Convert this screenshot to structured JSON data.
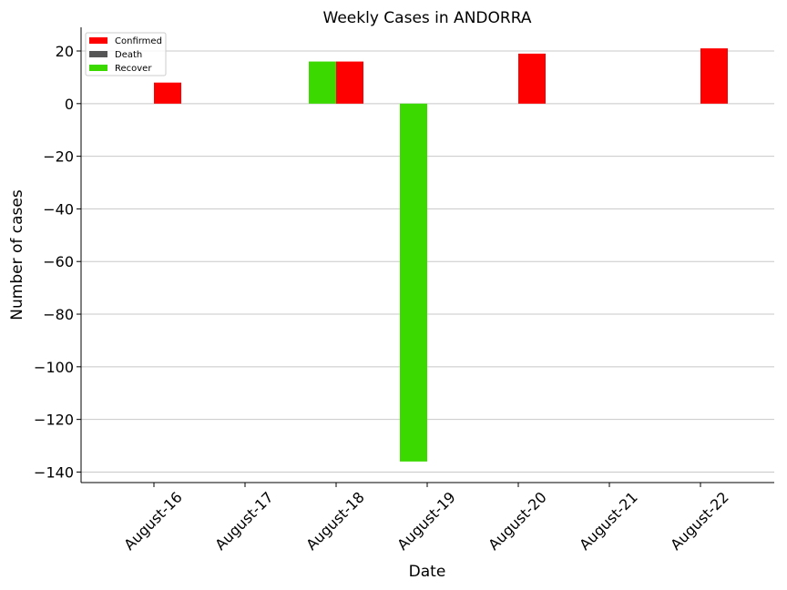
{
  "chart_data": {
    "type": "bar",
    "title": "Weekly Cases in ANDORRA",
    "xlabel": "Date",
    "ylabel": "Number of cases",
    "categories": [
      "August-16",
      "August-17",
      "August-18",
      "August-19",
      "August-20",
      "August-21",
      "August-22"
    ],
    "series": [
      {
        "name": "Confirmed",
        "color": "#ff0000",
        "values": [
          8,
          0,
          16,
          0,
          19,
          0,
          21
        ]
      },
      {
        "name": "Death",
        "color": "#555555",
        "values": [
          0,
          0,
          0,
          0,
          0,
          0,
          0
        ]
      },
      {
        "name": "Recover",
        "color": "#3cd900",
        "values": [
          0,
          0,
          16,
          -136,
          0,
          0,
          0
        ]
      }
    ],
    "ylim": [
      -144,
      29
    ],
    "yticks": [
      20,
      0,
      -20,
      -40,
      -60,
      -80,
      -100,
      -120,
      -140
    ],
    "ytick_labels": [
      "20",
      "0",
      "−20",
      "−40",
      "−60",
      "−80",
      "−100",
      "−120",
      "−140"
    ],
    "grid": true,
    "legend_position": "top-left"
  }
}
